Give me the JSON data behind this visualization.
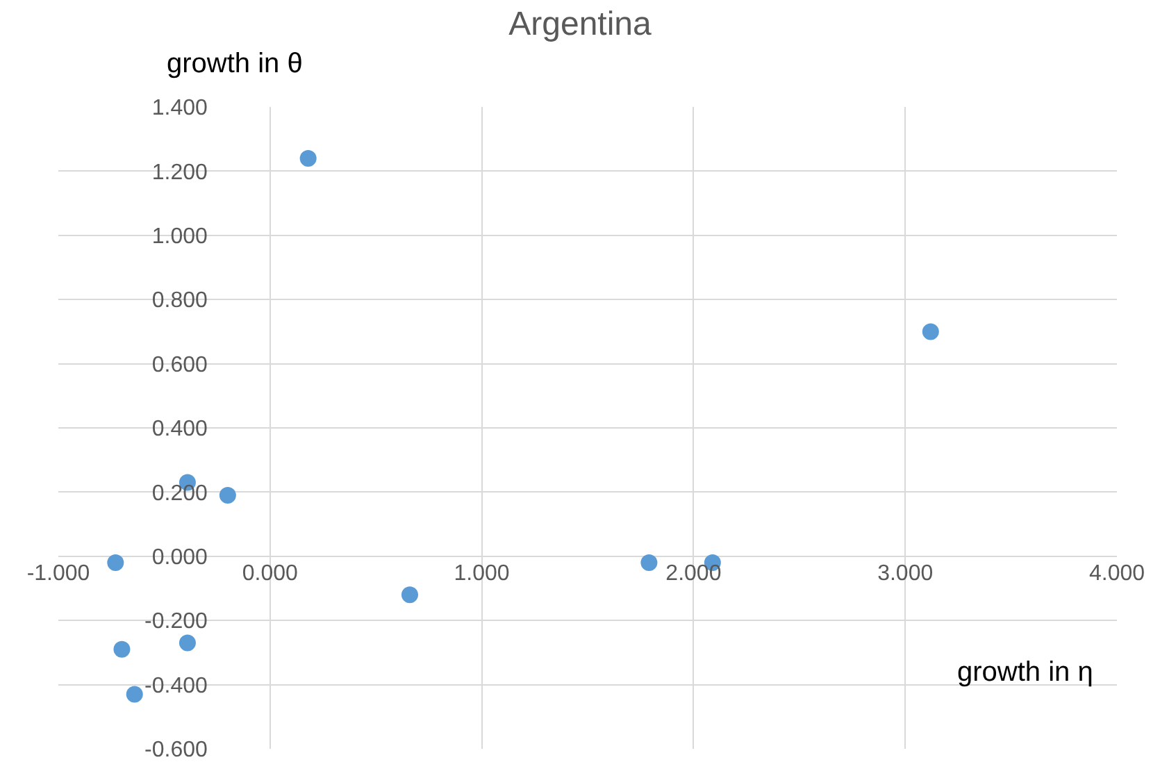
{
  "chart_data": {
    "type": "scatter",
    "title": "Argentina",
    "xlabel": "growth in η",
    "ylabel": "growth in θ",
    "x": [
      0.18,
      3.12,
      -0.39,
      -0.2,
      -0.73,
      0.66,
      1.79,
      2.09,
      -0.7,
      -0.39,
      -0.64
    ],
    "series": [
      {
        "color": "#5b9bd5",
        "values": [
          1.24,
          0.7,
          0.23,
          0.19,
          -0.02,
          -0.12,
          -0.02,
          -0.02,
          -0.29,
          -0.27,
          -0.43
        ]
      }
    ],
    "xlim": [
      -1,
      4
    ],
    "xticks": [
      {
        "value": -1,
        "label": "-1.000"
      },
      {
        "value": 0,
        "label": "0.000"
      },
      {
        "value": 1,
        "label": "1.000"
      },
      {
        "value": 2,
        "label": "2.000"
      },
      {
        "value": 3,
        "label": "3.000"
      },
      {
        "value": 4,
        "label": "4.000"
      }
    ],
    "ylim": [
      -0.6,
      1.4
    ],
    "yticks": [
      {
        "value": -0.6,
        "label": "-0.600"
      },
      {
        "value": -0.4,
        "label": "-0.400"
      },
      {
        "value": -0.2,
        "label": "-0.200"
      },
      {
        "value": 0,
        "label": "0.000"
      },
      {
        "value": 0.2,
        "label": "0.200"
      },
      {
        "value": 0.4,
        "label": "0.400"
      },
      {
        "value": 0.6,
        "label": "0.600"
      },
      {
        "value": 0.8,
        "label": "0.800"
      },
      {
        "value": 1.0,
        "label": "1.000"
      },
      {
        "value": 1.2,
        "label": "1.200"
      },
      {
        "value": 1.4,
        "label": "1.400"
      }
    ],
    "grid": true,
    "marker": "circle",
    "legend": false
  }
}
